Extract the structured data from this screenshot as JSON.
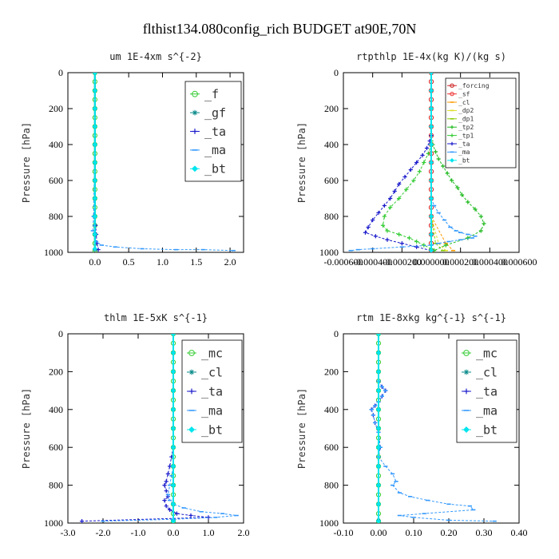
{
  "title": "flthist134.080config_rich  BUDGET at90E,70N",
  "ylabel": "Pressure [hPa]",
  "chart_data": [
    {
      "id": "um",
      "type": "line",
      "title": "um   1E-4xm s^{-2}",
      "xlim": [
        -0.4,
        2.2
      ],
      "ylim": [
        1000,
        0
      ],
      "xticks": [
        0,
        0.5,
        1.0,
        1.5,
        2.0
      ],
      "xtick_labels": [
        "0.0",
        "0.5",
        "1.0",
        "1.5",
        "2.0"
      ],
      "yticks": [
        0,
        200,
        400,
        600,
        800,
        1000
      ],
      "ytick_labels": [
        "0",
        "200",
        "400",
        "600",
        "800",
        "1000"
      ],
      "legend": "top-right",
      "series": [
        {
          "name": "_f",
          "color": "#33cc33",
          "marker": "circle",
          "x": [
            0,
            0,
            0,
            0,
            0,
            0,
            0,
            0,
            0,
            0,
            0,
            0,
            0,
            0,
            0,
            0,
            0,
            0,
            0,
            0,
            0
          ],
          "y": [
            0,
            50,
            100,
            150,
            200,
            250,
            300,
            350,
            400,
            450,
            500,
            550,
            600,
            650,
            700,
            750,
            800,
            850,
            900,
            950,
            990
          ]
        },
        {
          "name": "_gf",
          "color": "#0a8a8a",
          "marker": "asterisk",
          "x": [
            0,
            0,
            0,
            0,
            0,
            0,
            0,
            0,
            0,
            0,
            0
          ],
          "y": [
            0,
            100,
            200,
            300,
            400,
            500,
            600,
            700,
            800,
            900,
            985
          ]
        },
        {
          "name": "_ta",
          "color": "#1a1acc",
          "marker": "plus",
          "x": [
            0,
            0,
            0,
            0,
            -0.01,
            0.01,
            0.02,
            0.03,
            0.05
          ],
          "y": [
            0,
            200,
            400,
            600,
            800,
            850,
            900,
            950,
            985
          ]
        },
        {
          "name": "_ma",
          "color": "#3399ff",
          "marker": "dash",
          "x": [
            0,
            0,
            0,
            -0.02,
            -0.03,
            0.02,
            0.1,
            0.3,
            0.7,
            1.2,
            1.6,
            2.05
          ],
          "y": [
            0,
            200,
            400,
            800,
            880,
            940,
            960,
            970,
            980,
            985,
            985,
            990
          ]
        },
        {
          "name": "_bt",
          "color": "#00e5ee",
          "marker": "diamond",
          "x": [
            0,
            0,
            0,
            0,
            0,
            0,
            0,
            0,
            0,
            0,
            0
          ],
          "y": [
            0,
            100,
            200,
            300,
            400,
            500,
            600,
            700,
            800,
            900,
            980
          ]
        }
      ]
    },
    {
      "id": "rtpthlp",
      "type": "line",
      "title": "rtpthlp   1E-4x(kg K)/(kg s)",
      "xlim": [
        -0.0006,
        0.0006
      ],
      "ylim": [
        1000,
        0
      ],
      "xticks": [
        -0.0006,
        -0.0004,
        -0.0002,
        0,
        0.0002,
        0.0004,
        0.0006
      ],
      "xtick_labels": [
        "-0.000600",
        "-0.000400",
        "-0.000200",
        "0.000000",
        "0.000200",
        "0.000400",
        "0.000600"
      ],
      "yticks": [
        0,
        200,
        400,
        600,
        800,
        1000
      ],
      "ytick_labels": [
        "0",
        "200",
        "400",
        "600",
        "800",
        "1000"
      ],
      "legend": "top-right",
      "series": [
        {
          "name": "_forcing",
          "color": "#cc2222",
          "marker": "circle",
          "x": [
            0,
            0,
            0,
            0,
            0,
            0,
            0,
            0,
            0,
            0,
            0,
            0,
            0,
            0,
            0,
            0,
            0,
            0,
            0,
            0,
            0
          ],
          "y": [
            0,
            50,
            100,
            150,
            200,
            250,
            300,
            350,
            400,
            450,
            500,
            550,
            600,
            650,
            700,
            750,
            800,
            850,
            900,
            950,
            990
          ]
        },
        {
          "name": "_sf",
          "color": "#ee3333",
          "marker": "circle",
          "x": [
            0,
            0,
            0,
            0,
            0,
            0,
            0,
            0,
            0,
            0,
            0
          ],
          "y": [
            0,
            100,
            200,
            300,
            400,
            500,
            600,
            700,
            800,
            900,
            990
          ]
        },
        {
          "name": "_cl",
          "color": "#ff9900",
          "marker": "dash",
          "x": [
            0,
            0,
            0,
            0,
            0,
            0.0001,
            0.00015
          ],
          "y": [
            0,
            200,
            400,
            600,
            800,
            950,
            990
          ]
        },
        {
          "name": "_dp2",
          "color": "#dddd22",
          "marker": "dash",
          "x": [
            0,
            0,
            0,
            0,
            0,
            5e-05,
            0.0001
          ],
          "y": [
            0,
            200,
            400,
            600,
            800,
            950,
            990
          ]
        },
        {
          "name": "_dp1",
          "color": "#88cc00",
          "marker": "dash",
          "x": [
            0,
            0,
            0,
            0,
            3e-05,
            8e-05
          ],
          "y": [
            0,
            300,
            600,
            800,
            950,
            990
          ]
        },
        {
          "name": "_tp2",
          "color": "#22bb22",
          "marker": "plus",
          "x": [
            0,
            0,
            1e-05,
            3e-05,
            5e-05,
            8e-05,
            0.00011,
            0.00014,
            0.00018,
            0.00021,
            0.00025,
            0.0003,
            0.00034,
            0.00036,
            0.00034,
            0.00025,
            0.0001,
            2e-05
          ],
          "y": [
            350,
            380,
            400,
            440,
            480,
            520,
            560,
            600,
            640,
            680,
            720,
            760,
            800,
            840,
            880,
            920,
            960,
            990
          ]
        },
        {
          "name": "_tp1",
          "color": "#33cc33",
          "marker": "plus",
          "x": [
            0,
            -2e-05,
            -5e-05,
            -8e-05,
            -0.00012,
            -0.00017,
            -0.00022,
            -0.00028,
            -0.00032,
            -0.00033,
            -0.0003,
            -0.00022,
            -0.00015,
            -0.0001,
            -5e-05,
            0
          ],
          "y": [
            400,
            450,
            500,
            550,
            600,
            650,
            700,
            750,
            800,
            850,
            880,
            900,
            920,
            940,
            960,
            980
          ]
        },
        {
          "name": "_ta",
          "color": "#1a1acc",
          "marker": "plus",
          "x": [
            0,
            -1e-05,
            -3e-05,
            -6e-05,
            -0.0001,
            -0.00014,
            -0.00018,
            -0.00022,
            -0.00025,
            -0.00028,
            -0.00032,
            -0.00036,
            -0.0004,
            -0.00043,
            -0.00045,
            -0.00038,
            -0.0003,
            -0.0002,
            -0.0001,
            0
          ],
          "y": [
            350,
            380,
            420,
            460,
            500,
            540,
            580,
            620,
            660,
            700,
            740,
            780,
            820,
            860,
            890,
            910,
            930,
            950,
            970,
            990
          ]
        },
        {
          "name": "_ma",
          "color": "#3399ff",
          "marker": "dash",
          "x": [
            0,
            2e-05,
            5e-05,
            9e-05,
            0.00013,
            0.00017,
            0.0002,
            0.00025,
            0.0003,
            0.00028,
            0.0002,
            0.00012,
            5e-05,
            0,
            -0.0002,
            -0.0004,
            -0.0005,
            -0.00055
          ],
          "y": [
            700,
            740,
            780,
            820,
            860,
            880,
            890,
            900,
            910,
            920,
            930,
            940,
            950,
            960,
            970,
            980,
            985,
            990
          ]
        },
        {
          "name": "_bt",
          "color": "#00e5ee",
          "marker": "diamond",
          "x": [
            0,
            0,
            0,
            0,
            0,
            0,
            0,
            0,
            0,
            0,
            0
          ],
          "y": [
            0,
            100,
            200,
            300,
            400,
            500,
            600,
            700,
            800,
            900,
            990
          ]
        }
      ]
    },
    {
      "id": "thlm",
      "type": "line",
      "title": "thlm   1E-5xK s^{-1}",
      "xlim": [
        -3.0,
        2.0
      ],
      "ylim": [
        1000,
        0
      ],
      "xticks": [
        -3,
        -2,
        -1,
        0,
        1,
        2
      ],
      "xtick_labels": [
        "-3.0",
        "-2.0",
        "-1.0",
        "0.0",
        "1.0",
        "2.0"
      ],
      "yticks": [
        0,
        200,
        400,
        600,
        800,
        1000
      ],
      "ytick_labels": [
        "0",
        "200",
        "400",
        "600",
        "800",
        "1000"
      ],
      "legend": "top-right",
      "series": [
        {
          "name": "_mc",
          "color": "#33cc33",
          "marker": "circle",
          "x": [
            0,
            0,
            0,
            0,
            0,
            0,
            0,
            0,
            0,
            0,
            0,
            0,
            0,
            0,
            0,
            0,
            0,
            0,
            0,
            0,
            0
          ],
          "y": [
            0,
            50,
            100,
            150,
            200,
            250,
            300,
            350,
            400,
            450,
            500,
            550,
            600,
            650,
            700,
            750,
            800,
            850,
            900,
            950,
            990
          ]
        },
        {
          "name": "_cl",
          "color": "#0a8a8a",
          "marker": "asterisk",
          "x": [
            0,
            0,
            0,
            0,
            0,
            0,
            0,
            0,
            0,
            0,
            0
          ],
          "y": [
            0,
            100,
            200,
            300,
            400,
            500,
            600,
            700,
            800,
            900,
            985
          ]
        },
        {
          "name": "_ta",
          "color": "#1a1acc",
          "marker": "plus",
          "x": [
            0,
            -0.05,
            -0.1,
            -0.15,
            -0.2,
            -0.25,
            -0.2,
            -0.15,
            -0.25,
            -0.2,
            -0.1,
            0.1,
            0.5,
            1.0,
            -2.6
          ],
          "y": [
            600,
            650,
            700,
            740,
            780,
            800,
            830,
            860,
            880,
            910,
            930,
            950,
            960,
            970,
            990
          ]
        },
        {
          "name": "_ma",
          "color": "#3399ff",
          "marker": "dash",
          "x": [
            0,
            0,
            -0.05,
            -0.1,
            -0.15,
            -0.1,
            0,
            0.3,
            0.8,
            1.4,
            1.8,
            1.2,
            0,
            -2.0
          ],
          "y": [
            600,
            700,
            750,
            800,
            850,
            880,
            900,
            920,
            940,
            950,
            960,
            970,
            980,
            990
          ]
        },
        {
          "name": "_bt",
          "color": "#00e5ee",
          "marker": "diamond",
          "x": [
            0,
            0,
            0,
            0,
            0,
            0,
            0,
            0,
            0,
            0,
            0
          ],
          "y": [
            0,
            100,
            200,
            300,
            400,
            500,
            600,
            700,
            800,
            900,
            990
          ]
        }
      ]
    },
    {
      "id": "rtm",
      "type": "line",
      "title": "rtm   1E-8xkg kg^{-1} s^{-1}",
      "xlim": [
        -0.1,
        0.4
      ],
      "ylim": [
        1000,
        0
      ],
      "xticks": [
        -0.1,
        0,
        0.1,
        0.2,
        0.3,
        0.4
      ],
      "xtick_labels": [
        "-0.10",
        "0.00",
        "0.10",
        "0.20",
        "0.30",
        "0.40"
      ],
      "yticks": [
        0,
        200,
        400,
        600,
        800,
        1000
      ],
      "ytick_labels": [
        "0",
        "200",
        "400",
        "600",
        "800",
        "1000"
      ],
      "legend": "top-right",
      "series": [
        {
          "name": "_mc",
          "color": "#33cc33",
          "marker": "circle",
          "x": [
            0,
            0,
            0,
            0,
            0,
            0,
            0,
            0,
            0,
            0,
            0,
            0,
            0,
            0,
            0,
            0,
            0,
            0,
            0,
            0,
            0
          ],
          "y": [
            0,
            50,
            100,
            150,
            200,
            250,
            300,
            350,
            400,
            450,
            500,
            550,
            600,
            650,
            700,
            750,
            800,
            850,
            900,
            950,
            990
          ]
        },
        {
          "name": "_cl",
          "color": "#0a8a8a",
          "marker": "asterisk",
          "x": [
            0,
            0,
            0,
            0,
            0,
            0,
            0,
            0,
            0,
            0,
            0
          ],
          "y": [
            0,
            100,
            200,
            300,
            400,
            500,
            600,
            700,
            800,
            900,
            985
          ]
        },
        {
          "name": "_ta",
          "color": "#1a1acc",
          "marker": "plus",
          "x": [
            0,
            0.01,
            0.02,
            0.01,
            0,
            -0.01,
            -0.02,
            -0.015,
            -0.01,
            0,
            0.005,
            0
          ],
          "y": [
            250,
            280,
            300,
            330,
            360,
            380,
            400,
            430,
            470,
            520,
            600,
            650
          ]
        },
        {
          "name": "_ma",
          "color": "#3399ff",
          "marker": "dash",
          "x": [
            0,
            0.01,
            0.02,
            0.01,
            0,
            -0.01,
            -0.02,
            -0.015,
            -0.01,
            0,
            0.005,
            0,
            0.02,
            0.04,
            0.05,
            0.04,
            0.06,
            0.09,
            0.14,
            0.2,
            0.26,
            0.27,
            0.13,
            0.06,
            0.1,
            0.2,
            0.33
          ],
          "y": [
            250,
            280,
            300,
            330,
            360,
            380,
            400,
            430,
            470,
            520,
            600,
            650,
            700,
            740,
            780,
            800,
            840,
            860,
            880,
            900,
            910,
            930,
            950,
            960,
            970,
            985,
            990
          ]
        },
        {
          "name": "_bt",
          "color": "#00e5ee",
          "marker": "diamond",
          "x": [
            0,
            0,
            0,
            0,
            0,
            0,
            0,
            0,
            0,
            0,
            0
          ],
          "y": [
            0,
            100,
            200,
            300,
            400,
            500,
            600,
            700,
            800,
            900,
            990
          ]
        }
      ]
    }
  ]
}
